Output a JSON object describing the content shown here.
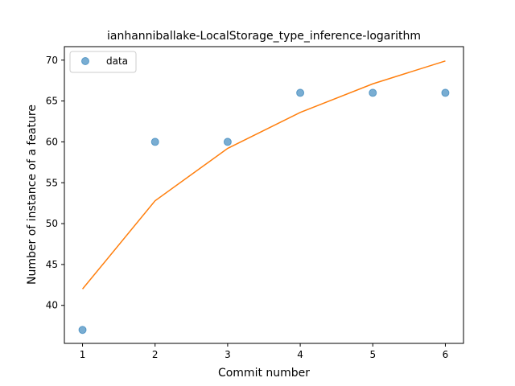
{
  "chart_data": {
    "type": "scatter",
    "title": "ianhanniballake-LocalStorage_type_inference-logarithm",
    "xlabel": "Commit number",
    "ylabel": "Number of instance of a feature",
    "xlim": [
      0.75,
      6.25
    ],
    "ylim": [
      35.35,
      71.65
    ],
    "x_ticks": [
      1,
      2,
      3,
      4,
      5,
      6
    ],
    "y_ticks": [
      40,
      45,
      50,
      55,
      60,
      65,
      70
    ],
    "legend": {
      "placement": "top-left",
      "entries": [
        "data"
      ]
    },
    "grid": false,
    "series": [
      {
        "name": "data",
        "kind": "scatter",
        "color": "#1f77b4",
        "x": [
          1,
          2,
          3,
          4,
          5,
          6
        ],
        "y": [
          37,
          60,
          60,
          66,
          66,
          66
        ]
      },
      {
        "kind": "line",
        "color": "#ff7f0e",
        "x": [
          1,
          2,
          3,
          4,
          5,
          6
        ],
        "y": [
          42.0,
          52.8,
          59.2,
          63.6,
          67.1,
          69.9
        ]
      }
    ]
  }
}
